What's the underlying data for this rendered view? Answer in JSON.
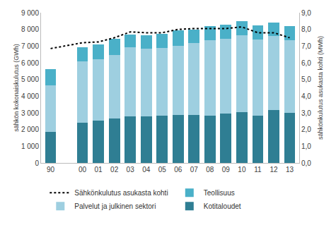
{
  "chart_data": {
    "type": "bar",
    "stacked": true,
    "grid": false,
    "legend": "bottom",
    "categories": [
      "90",
      null,
      "00",
      "01",
      "02",
      "03",
      "04",
      "05",
      "06",
      "07",
      "08",
      "09",
      "10",
      "11",
      "12",
      "13"
    ],
    "y_label": "sähkön kokonaiskulutus (GWh)",
    "y2_label": "sähkönkulutus asukasta kohti (MWh)",
    "ylim": [
      0,
      9000
    ],
    "yticks": [
      0,
      {
        "value": 1000,
        "label": "1 000"
      },
      {
        "value": 2000,
        "label": "2 000"
      },
      {
        "value": 3000,
        "label": "3 000"
      },
      {
        "value": 4000,
        "label": "4 000"
      },
      {
        "value": 5000,
        "label": "5 000"
      },
      {
        "value": 6000,
        "label": "6 000"
      },
      {
        "value": 7000,
        "label": "7 000"
      },
      {
        "value": 8000,
        "label": "8 000"
      },
      {
        "value": 9000,
        "label": "9 000"
      }
    ],
    "y2lim": [
      0,
      9
    ],
    "y2ticks": [
      {
        "value": 0,
        "label": "0,0"
      },
      {
        "value": 1,
        "label": "1,0"
      },
      {
        "value": 2,
        "label": "2,0"
      },
      {
        "value": 3,
        "label": "3,0"
      },
      {
        "value": 4,
        "label": "4,0"
      },
      {
        "value": 5,
        "label": "5,0"
      },
      {
        "value": 6,
        "label": "6,0"
      },
      {
        "value": 7,
        "label": "7,0"
      },
      {
        "value": 8,
        "label": "8,0"
      },
      {
        "value": 9,
        "label": "9,0"
      }
    ],
    "series": [
      {
        "name": "Kotitaloudet",
        "type": "bar",
        "color": "#2f7e93",
        "values": [
          1850,
          null,
          2400,
          2520,
          2650,
          2800,
          2780,
          2820,
          2870,
          2870,
          2850,
          2950,
          3050,
          2850,
          3150,
          3020
        ]
      },
      {
        "name": "Palvelut ja julkinen sektori",
        "type": "bar",
        "color": "#9ecfe0",
        "values": [
          2800,
          null,
          3700,
          3680,
          3800,
          4150,
          4070,
          4080,
          4130,
          4330,
          4500,
          4500,
          4600,
          4550,
          4450,
          4330
        ]
      },
      {
        "name": "Teollisuus",
        "type": "bar",
        "color": "#4ab0c8",
        "values": [
          950,
          null,
          850,
          900,
          1000,
          750,
          800,
          850,
          950,
          800,
          850,
          850,
          850,
          850,
          800,
          850
        ]
      },
      {
        "name": "Sähkönkulutus asukasta kohti",
        "type": "line",
        "axis": "y2",
        "color": "#000000",
        "line_style": "dotted",
        "values": [
          6.85,
          null,
          7.2,
          7.25,
          7.5,
          7.85,
          7.8,
          7.8,
          8.0,
          8.05,
          8.05,
          8.05,
          8.15,
          7.8,
          7.8,
          7.5
        ]
      }
    ]
  }
}
